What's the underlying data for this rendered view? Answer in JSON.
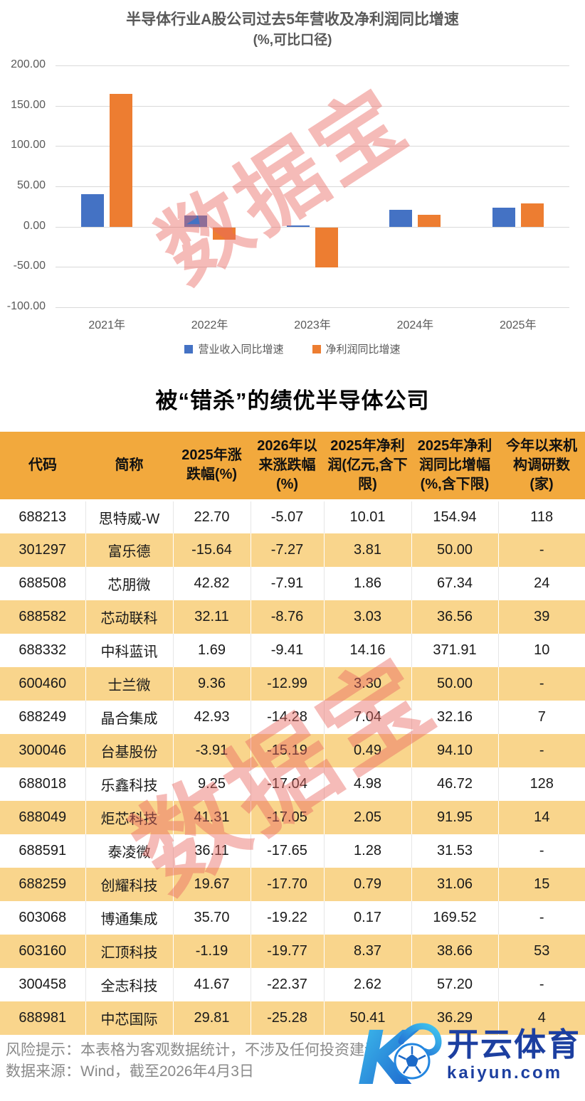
{
  "chart": {
    "title": "半导体行业A股公司过去5年营收及净利润同比增速",
    "subtitle": "(%,可比口径)",
    "watermark": "数据宝"
  },
  "chart_data": {
    "type": "bar",
    "categories": [
      "2021年",
      "2022年",
      "2023年",
      "2024年",
      "2025年"
    ],
    "series": [
      {
        "name": "营业收入同比增速",
        "color": "#4472C4",
        "values": [
          40,
          14,
          1.5,
          21,
          23.5
        ]
      },
      {
        "name": "净利润同比增速",
        "color": "#ED7D31",
        "values": [
          165,
          -15,
          -50,
          15,
          29
        ]
      }
    ],
    "title": "半导体行业A股公司过去5年营收及净利润同比增速 (%,可比口径)",
    "xlabel": "",
    "ylabel": "",
    "ylim": [
      -100,
      200
    ],
    "ytick_step": 50,
    "yticks": [
      "200.00",
      "150.00",
      "100.00",
      "50.00",
      "0.00",
      "-50.00",
      "-100.00"
    ],
    "grid": true,
    "legend_position": "bottom"
  },
  "table": {
    "title": "被“错杀”的绩优半导体公司",
    "watermark": "数据宝",
    "headers": [
      "代码",
      "简称",
      "2025年涨跌幅(%)",
      "2026年以来涨跌幅(%)",
      "2025年净利润(亿元,含下限)",
      "2025年净利润同比增幅(%,含下限)",
      "今年以来机构调研数(家)"
    ],
    "rows": [
      [
        "688213",
        "思特威-W",
        "22.70",
        "-5.07",
        "10.01",
        "154.94",
        "118"
      ],
      [
        "301297",
        "富乐德",
        "-15.64",
        "-7.27",
        "3.81",
        "50.00",
        "-"
      ],
      [
        "688508",
        "芯朋微",
        "42.82",
        "-7.91",
        "1.86",
        "67.34",
        "24"
      ],
      [
        "688582",
        "芯动联科",
        "32.11",
        "-8.76",
        "3.03",
        "36.56",
        "39"
      ],
      [
        "688332",
        "中科蓝讯",
        "1.69",
        "-9.41",
        "14.16",
        "371.91",
        "10"
      ],
      [
        "600460",
        "士兰微",
        "9.36",
        "-12.99",
        "3.30",
        "50.00",
        "-"
      ],
      [
        "688249",
        "晶合集成",
        "42.93",
        "-14.28",
        "7.04",
        "32.16",
        "7"
      ],
      [
        "300046",
        "台基股份",
        "-3.91",
        "-15.19",
        "0.49",
        "94.10",
        "-"
      ],
      [
        "688018",
        "乐鑫科技",
        "9.25",
        "-17.04",
        "4.98",
        "46.72",
        "128"
      ],
      [
        "688049",
        "炬芯科技",
        "41.31",
        "-17.05",
        "2.05",
        "91.95",
        "14"
      ],
      [
        "688591",
        "泰凌微",
        "36.11",
        "-17.65",
        "1.28",
        "31.53",
        "-"
      ],
      [
        "688259",
        "创耀科技",
        "19.67",
        "-17.70",
        "0.79",
        "31.06",
        "15"
      ],
      [
        "603068",
        "博通集成",
        "35.70",
        "-19.22",
        "0.17",
        "169.52",
        "-"
      ],
      [
        "603160",
        "汇顶科技",
        "-1.19",
        "-19.77",
        "8.37",
        "38.66",
        "53"
      ],
      [
        "300458",
        "全志科技",
        "41.67",
        "-22.37",
        "2.62",
        "57.20",
        "-"
      ],
      [
        "688981",
        "中芯国际",
        "29.81",
        "-25.28",
        "50.41",
        "36.29",
        "4"
      ]
    ]
  },
  "footer": {
    "risk": "风险提示：本表格为客观数据统计，不涉及任何投资建议",
    "source": "数据来源：Wind，截至2026年4月3日"
  },
  "logo": {
    "brand": "开云体育",
    "domain": "kaiyun.com"
  },
  "colors": {
    "bar_revenue": "#4472C4",
    "bar_profit": "#ED7D31",
    "table_header_bg": "#F2A93D",
    "table_row_alt_bg": "#F9D58C",
    "watermark": "#E86961",
    "title_gray": "#595959",
    "logo_blue": "#1C3FA0"
  }
}
